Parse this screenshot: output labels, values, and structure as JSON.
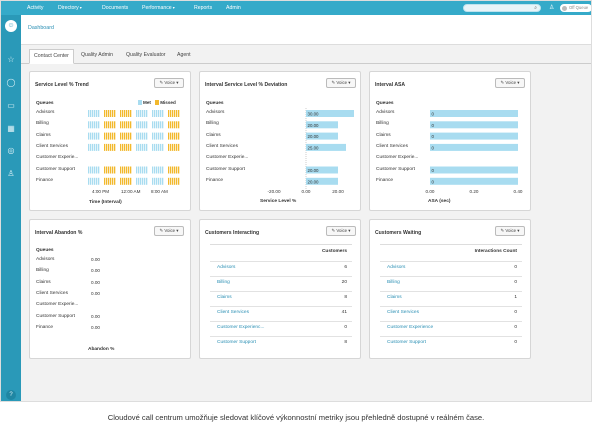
{
  "topnav": {
    "items": [
      {
        "label": "Activity",
        "caret": false
      },
      {
        "label": "Directory",
        "caret": true
      },
      {
        "label": "Documents",
        "caret": false
      },
      {
        "label": "Performance",
        "caret": true
      },
      {
        "label": "Reports",
        "caret": false
      },
      {
        "label": "Admin",
        "caret": false
      }
    ],
    "caret_glyph": "▾",
    "search_icon": "search-icon",
    "user_icon": "user-icon",
    "status_label": "Off Queue"
  },
  "rail": {
    "icons": [
      "home-icon",
      "star-icon",
      "chat-icon",
      "video-icon",
      "calendar-icon",
      "globe-icon",
      "add-user-icon",
      "help-icon"
    ],
    "glyphs": [
      "☺",
      "☆",
      "◯",
      "▭",
      "▦",
      "◎",
      "♙",
      "?"
    ]
  },
  "breadcrumb": "Dashboard",
  "tabs": [
    "Contact Center",
    "Quality Admin",
    "Quality Evaluator",
    "Agent"
  ],
  "queues": [
    "Advisors",
    "Billing",
    "Claims",
    "Client Services",
    "Customer Experience...",
    "Customer Support",
    "Finance"
  ],
  "queues_short": [
    "Advisors",
    "Billing",
    "Claims",
    "Client Services",
    "Customer Experie...",
    "Customer Support",
    "Finance"
  ],
  "queues_header": "Queues",
  "voice_label": "✎ Voice ▾",
  "colors": {
    "met": "#a8dcf0",
    "missed": "#f2b82c",
    "bar": "#a8dcf0",
    "link": "#2a8fb4",
    "nav": "#35aac9"
  },
  "panels": {
    "service_level_trend": {
      "title": "Service Level % Trend",
      "legend": [
        "Met",
        "Missed"
      ],
      "x_ticks": [
        "4:00 PM",
        "12:00 AM",
        "8:00 AM"
      ],
      "x_title": "Time (Interval)",
      "chart_data": {
        "type": "bar",
        "note_series": [
          "Met",
          "Missed"
        ],
        "rows": [
          {
            "queue": "Advisors",
            "pattern": "mixed"
          },
          {
            "queue": "Billing",
            "pattern": "mixed"
          },
          {
            "queue": "Claims",
            "pattern": "mixed"
          },
          {
            "queue": "Client Services",
            "pattern": "mixed"
          },
          {
            "queue": "Customer Experience...",
            "pattern": "none"
          },
          {
            "queue": "Customer Support",
            "pattern": "mixed"
          },
          {
            "queue": "Finance",
            "pattern": "mixed"
          }
        ]
      }
    },
    "interval_service_level_deviation": {
      "title": "Interval Service Level % Deviation",
      "x_ticks": [
        "-20.00",
        "0.00",
        "20.00"
      ],
      "x_title": "Service Level %",
      "chart_data": {
        "type": "bar",
        "categories": [
          "Advisors",
          "Billing",
          "Claims",
          "Client Services",
          "Customer Experience...",
          "Customer Support",
          "Finance"
        ],
        "values": [
          30.0,
          20.0,
          20.0,
          25.0,
          null,
          20.0,
          20.0
        ],
        "labels": [
          "30.00",
          "20.00",
          "20.00",
          "25.00",
          "",
          "20.00",
          "20.00"
        ],
        "xlim": [
          -30,
          30
        ]
      }
    },
    "interval_asa": {
      "title": "Interval ASA",
      "x_ticks": [
        "0.00",
        "0.20",
        "0.40"
      ],
      "x_title": "ASA (sec)",
      "chart_data": {
        "type": "bar",
        "categories": [
          "Advisors",
          "Billing",
          "Claims",
          "Client Services",
          "Customer Experience...",
          "Customer Support",
          "Finance"
        ],
        "values": [
          0.4,
          0.4,
          0.4,
          0.4,
          null,
          0.4,
          0.4
        ],
        "labels": [
          "0",
          "0",
          "0",
          "0",
          "",
          "0",
          "0"
        ],
        "xlim": [
          0,
          0.4
        ]
      }
    },
    "interval_abandon": {
      "title": "Interval Abandon %",
      "values": [
        "0.00",
        "0.00",
        "0.00",
        "0.00",
        "",
        "0.00",
        "0.00"
      ],
      "x_title": "Abandon %"
    },
    "customers_interacting": {
      "title": "Customers Interacting",
      "col_header": "Customers",
      "rows": [
        {
          "name": "Advisors",
          "count": "6"
        },
        {
          "name": "Billing",
          "count": "20"
        },
        {
          "name": "Claims",
          "count": "8"
        },
        {
          "name": "Client Services",
          "count": "41"
        },
        {
          "name": "Customer Experienc...",
          "count": "0"
        },
        {
          "name": "Customer Support",
          "count": "8"
        }
      ]
    },
    "customers_waiting": {
      "title": "Customers Waiting",
      "col_header": "Interactions Count",
      "rows": [
        {
          "name": "Advisors",
          "count": "0"
        },
        {
          "name": "Billing",
          "count": "0"
        },
        {
          "name": "Claims",
          "count": "1"
        },
        {
          "name": "Client Services",
          "count": "0"
        },
        {
          "name": "Customer Experience",
          "count": "0"
        },
        {
          "name": "Customer Support",
          "count": "0"
        }
      ]
    }
  },
  "caption": "Cloudové call centrum umožňuje sledovat klíčové výkonnostní metriky jsou přehledně dostupné v reálném čase."
}
